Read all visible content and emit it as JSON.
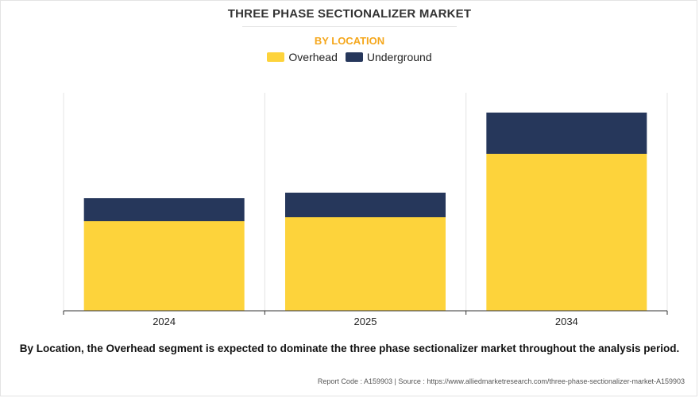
{
  "header": {
    "title": "THREE PHASE SECTIONALIZER MARKET",
    "subtitle": "BY LOCATION"
  },
  "legend": [
    {
      "label": "Overhead",
      "color": "#fdd33b"
    },
    {
      "label": "Underground",
      "color": "#26375b"
    }
  ],
  "chart_data": {
    "type": "bar",
    "stacked": true,
    "categories": [
      "2024",
      "2025",
      "2034"
    ],
    "series": [
      {
        "name": "Overhead",
        "color": "#fdd33b",
        "values": [
          113,
          118,
          198
        ]
      },
      {
        "name": "Underground",
        "color": "#26375b",
        "values": [
          29,
          31,
          52
        ]
      }
    ],
    "ylim": [
      0,
      275
    ],
    "grid": "vertical",
    "legend_position": "top-center"
  },
  "caption": "By Location, the Overhead segment is expected to dominate the three phase sectionalizer market throughout the analysis period.",
  "footer": "Report Code : A159903  |  Source : https://www.alliedmarketresearch.com/three-phase-sectionalizer-market-A159903"
}
